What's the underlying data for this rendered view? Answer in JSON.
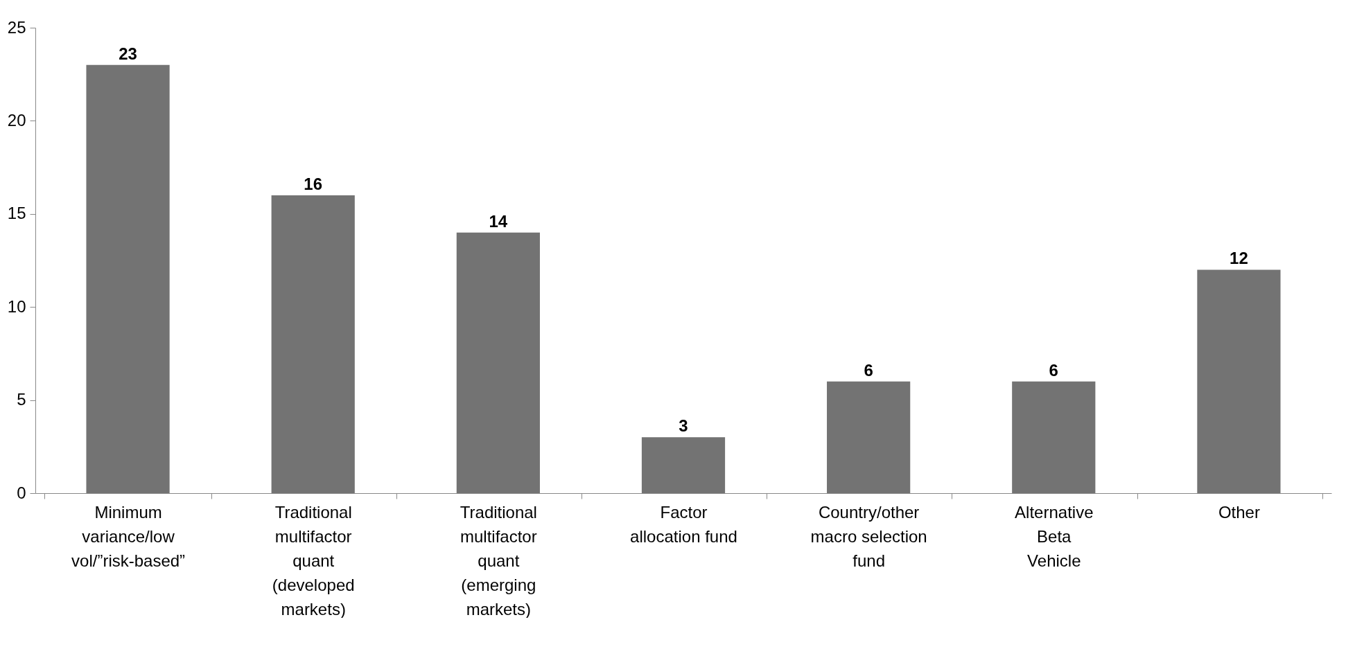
{
  "chart_data": {
    "type": "bar",
    "categories": [
      "Minimum\nvariance/low\nvol/”risk-based”",
      "Traditional\nmultifactor\nquant\n(developed\nmarkets)",
      "Traditional\nmultifactor\nquant\n(emerging\nmarkets)",
      "Factor\nallocation fund",
      "Country/other\nmacro selection\nfund",
      "Alternative\nBeta\nVehicle",
      "Other"
    ],
    "values": [
      23,
      16,
      14,
      3,
      6,
      6,
      12
    ],
    "color": "#737373",
    "ylim": [
      0,
      25
    ],
    "yticks": [
      0,
      5,
      10,
      15,
      20,
      25
    ],
    "grid": false,
    "data_labels": true
  }
}
